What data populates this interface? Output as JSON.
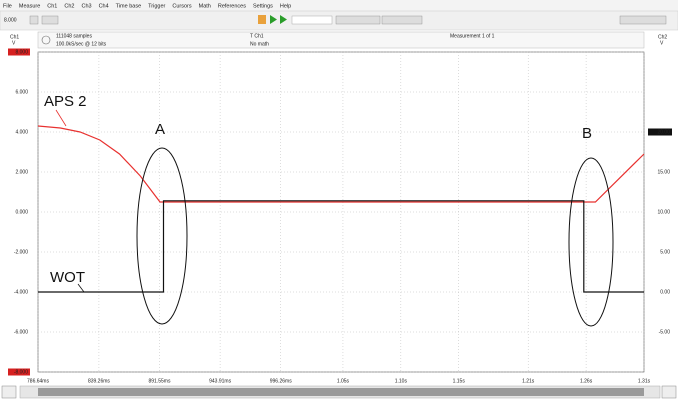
{
  "menu": [
    "File",
    "Measure",
    "Ch1",
    "Ch2",
    "Ch3",
    "Ch4",
    "Time base",
    "Trigger",
    "Cursors",
    "Math",
    "References",
    "Settings",
    "Help"
  ],
  "toolbar": {
    "zoom": "8.000"
  },
  "info": {
    "samples": "111048 samples",
    "rate": "100.0kS/sec @ 12 bits",
    "trigger": "T Ch1",
    "math": "No math",
    "measurement": "Measurement 1 of 1"
  },
  "chart_data": {
    "type": "line",
    "left_axis": {
      "channel": "Ch1",
      "unit": "V"
    },
    "right_axis": {
      "channel": "Ch2",
      "unit": "V"
    },
    "xlim": [
      0.78664,
      1.31
    ],
    "xticks": [
      {
        "value": 0.78664,
        "label": "786.64ms"
      },
      {
        "value": 0.83926,
        "label": "839.26ms"
      },
      {
        "value": 0.89155,
        "label": "891.55ms"
      },
      {
        "value": 0.94391,
        "label": "943.91ms"
      },
      {
        "value": 0.99626,
        "label": "996.26ms"
      },
      {
        "value": 1.05,
        "label": "1.05s"
      },
      {
        "value": 1.1,
        "label": "1.10s"
      },
      {
        "value": 1.15,
        "label": "1.15s"
      },
      {
        "value": 1.21,
        "label": "1.21s"
      },
      {
        "value": 1.26,
        "label": "1.26s"
      },
      {
        "value": 1.31,
        "label": "1.31s"
      }
    ],
    "ylim": [
      -8,
      8
    ],
    "yticks": [
      {
        "value": 8,
        "label": "8.000"
      },
      {
        "value": 6,
        "label": "6.000"
      },
      {
        "value": 4,
        "label": "4.000"
      },
      {
        "value": 2,
        "label": "2.000"
      },
      {
        "value": 0,
        "label": "0.000"
      },
      {
        "value": -2,
        "label": "-2.000"
      },
      {
        "value": -4,
        "label": "-4.000"
      },
      {
        "value": -6,
        "label": "-6.000"
      },
      {
        "value": -8,
        "label": "-8.000"
      }
    ],
    "y2lim": [
      -10,
      30
    ],
    "y2ticks": [
      {
        "value": 20,
        "label": "20.00"
      },
      {
        "value": 15,
        "label": "15.00"
      },
      {
        "value": 10,
        "label": "10.00"
      },
      {
        "value": 5,
        "label": "5.00"
      },
      {
        "value": 0,
        "label": "0.00"
      },
      {
        "value": -5,
        "label": "-5.00"
      }
    ],
    "grid": true,
    "series": [
      {
        "name": "APS 2",
        "color": "#e8312f",
        "x": [
          0.7866,
          0.806,
          0.823,
          0.84,
          0.857,
          0.875,
          0.892,
          1.268,
          1.31
        ],
        "values": [
          4.3,
          4.2,
          4.0,
          3.6,
          2.9,
          1.8,
          0.5,
          0.5,
          2.9
        ]
      },
      {
        "name": "WOT",
        "color": "#111111",
        "axis": "y2",
        "x": [
          0.7866,
          0.895,
          0.895,
          1.258,
          1.258,
          1.31
        ],
        "values": [
          0,
          0,
          11.4,
          11.4,
          0,
          0
        ]
      }
    ],
    "annotations": [
      "A",
      "B"
    ]
  }
}
